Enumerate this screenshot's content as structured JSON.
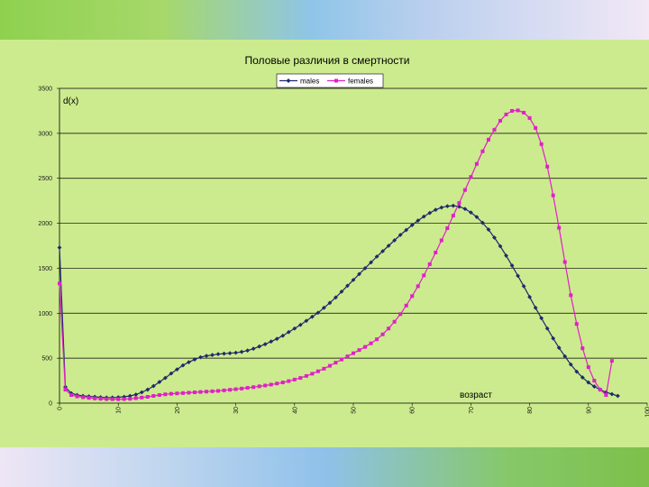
{
  "chart_data": {
    "type": "line",
    "title": "Половые различия в смертности",
    "ylabel": "d(x)",
    "xlabel": "возраст",
    "xlim": [
      0,
      100
    ],
    "ylim": [
      0,
      3500
    ],
    "x_ticks": [
      0,
      10,
      20,
      30,
      40,
      50,
      60,
      70,
      80,
      90,
      100
    ],
    "y_ticks": [
      0,
      500,
      1000,
      1500,
      2000,
      2500,
      3000,
      3500
    ],
    "y_tick_labels": [
      "0",
      "500",
      "1000",
      "1500",
      "2000",
      "2500",
      "3000",
      "3500"
    ],
    "grid": true,
    "legend_position": "top",
    "series": [
      {
        "name": "males",
        "color": "#1f2a6b",
        "marker": "diamond",
        "points": [
          [
            0,
            1730
          ],
          [
            1,
            180
          ],
          [
            2,
            110
          ],
          [
            3,
            90
          ],
          [
            4,
            80
          ],
          [
            5,
            75
          ],
          [
            6,
            70
          ],
          [
            7,
            65
          ],
          [
            8,
            62
          ],
          [
            9,
            62
          ],
          [
            10,
            65
          ],
          [
            11,
            70
          ],
          [
            12,
            80
          ],
          [
            13,
            95
          ],
          [
            14,
            120
          ],
          [
            15,
            150
          ],
          [
            16,
            190
          ],
          [
            17,
            235
          ],
          [
            18,
            280
          ],
          [
            19,
            330
          ],
          [
            20,
            375
          ],
          [
            21,
            420
          ],
          [
            22,
            455
          ],
          [
            23,
            485
          ],
          [
            24,
            510
          ],
          [
            25,
            525
          ],
          [
            26,
            535
          ],
          [
            27,
            545
          ],
          [
            28,
            550
          ],
          [
            29,
            555
          ],
          [
            30,
            560
          ],
          [
            31,
            570
          ],
          [
            32,
            585
          ],
          [
            33,
            605
          ],
          [
            34,
            630
          ],
          [
            35,
            655
          ],
          [
            36,
            685
          ],
          [
            37,
            715
          ],
          [
            38,
            750
          ],
          [
            39,
            790
          ],
          [
            40,
            830
          ],
          [
            41,
            870
          ],
          [
            42,
            915
          ],
          [
            43,
            960
          ],
          [
            44,
            1005
          ],
          [
            45,
            1060
          ],
          [
            46,
            1115
          ],
          [
            47,
            1175
          ],
          [
            48,
            1240
          ],
          [
            49,
            1305
          ],
          [
            50,
            1370
          ],
          [
            51,
            1435
          ],
          [
            52,
            1500
          ],
          [
            53,
            1565
          ],
          [
            54,
            1630
          ],
          [
            55,
            1690
          ],
          [
            56,
            1750
          ],
          [
            57,
            1810
          ],
          [
            58,
            1870
          ],
          [
            59,
            1925
          ],
          [
            60,
            1980
          ],
          [
            61,
            2030
          ],
          [
            62,
            2075
          ],
          [
            63,
            2115
          ],
          [
            64,
            2150
          ],
          [
            65,
            2175
          ],
          [
            66,
            2190
          ],
          [
            67,
            2195
          ],
          [
            68,
            2185
          ],
          [
            69,
            2160
          ],
          [
            70,
            2120
          ],
          [
            71,
            2070
          ],
          [
            72,
            2005
          ],
          [
            73,
            1930
          ],
          [
            74,
            1840
          ],
          [
            75,
            1745
          ],
          [
            76,
            1640
          ],
          [
            77,
            1530
          ],
          [
            78,
            1415
          ],
          [
            79,
            1300
          ],
          [
            80,
            1180
          ],
          [
            81,
            1060
          ],
          [
            82,
            945
          ],
          [
            83,
            830
          ],
          [
            84,
            720
          ],
          [
            85,
            615
          ],
          [
            86,
            520
          ],
          [
            87,
            430
          ],
          [
            88,
            350
          ],
          [
            89,
            285
          ],
          [
            90,
            230
          ],
          [
            91,
            185
          ],
          [
            92,
            150
          ],
          [
            93,
            120
          ],
          [
            94,
            100
          ],
          [
            95,
            80
          ]
        ]
      },
      {
        "name": "females",
        "color": "#e020c8",
        "marker": "square",
        "points": [
          [
            0,
            1330
          ],
          [
            1,
            150
          ],
          [
            2,
            90
          ],
          [
            3,
            75
          ],
          [
            4,
            65
          ],
          [
            5,
            58
          ],
          [
            6,
            52
          ],
          [
            7,
            48
          ],
          [
            8,
            45
          ],
          [
            9,
            44
          ],
          [
            10,
            44
          ],
          [
            11,
            45
          ],
          [
            12,
            48
          ],
          [
            13,
            55
          ],
          [
            14,
            62
          ],
          [
            15,
            70
          ],
          [
            16,
            80
          ],
          [
            17,
            90
          ],
          [
            18,
            98
          ],
          [
            19,
            104
          ],
          [
            20,
            108
          ],
          [
            21,
            112
          ],
          [
            22,
            116
          ],
          [
            23,
            120
          ],
          [
            24,
            124
          ],
          [
            25,
            128
          ],
          [
            26,
            132
          ],
          [
            27,
            136
          ],
          [
            28,
            142
          ],
          [
            29,
            148
          ],
          [
            30,
            155
          ],
          [
            31,
            162
          ],
          [
            32,
            170
          ],
          [
            33,
            178
          ],
          [
            34,
            187
          ],
          [
            35,
            196
          ],
          [
            36,
            206
          ],
          [
            37,
            218
          ],
          [
            38,
            230
          ],
          [
            39,
            245
          ],
          [
            40,
            262
          ],
          [
            41,
            280
          ],
          [
            42,
            302
          ],
          [
            43,
            327
          ],
          [
            44,
            354
          ],
          [
            45,
            383
          ],
          [
            46,
            415
          ],
          [
            47,
            450
          ],
          [
            48,
            485
          ],
          [
            49,
            520
          ],
          [
            50,
            555
          ],
          [
            51,
            590
          ],
          [
            52,
            625
          ],
          [
            53,
            665
          ],
          [
            54,
            710
          ],
          [
            55,
            765
          ],
          [
            56,
            830
          ],
          [
            57,
            905
          ],
          [
            58,
            990
          ],
          [
            59,
            1085
          ],
          [
            60,
            1190
          ],
          [
            61,
            1300
          ],
          [
            62,
            1420
          ],
          [
            63,
            1545
          ],
          [
            64,
            1675
          ],
          [
            65,
            1810
          ],
          [
            66,
            1945
          ],
          [
            67,
            2085
          ],
          [
            68,
            2225
          ],
          [
            69,
            2370
          ],
          [
            70,
            2515
          ],
          [
            71,
            2660
          ],
          [
            72,
            2800
          ],
          [
            73,
            2930
          ],
          [
            74,
            3040
          ],
          [
            75,
            3140
          ],
          [
            76,
            3210
          ],
          [
            77,
            3250
          ],
          [
            78,
            3255
          ],
          [
            79,
            3230
          ],
          [
            80,
            3170
          ],
          [
            81,
            3060
          ],
          [
            82,
            2880
          ],
          [
            83,
            2630
          ],
          [
            84,
            2310
          ],
          [
            85,
            1950
          ],
          [
            86,
            1570
          ],
          [
            87,
            1200
          ],
          [
            88,
            880
          ],
          [
            89,
            610
          ],
          [
            90,
            400
          ],
          [
            91,
            250
          ],
          [
            92,
            150
          ],
          [
            93,
            90
          ],
          [
            94,
            470
          ]
        ]
      }
    ]
  }
}
